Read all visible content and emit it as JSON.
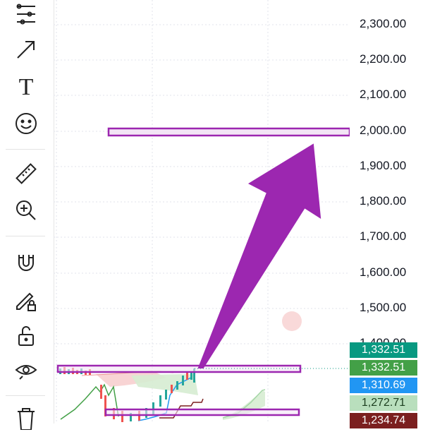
{
  "toolbar": {
    "tools": [
      {
        "name": "multipoint-icon"
      },
      {
        "name": "arrow-icon"
      },
      {
        "name": "text-icon",
        "glyph": "T"
      },
      {
        "name": "emoji-icon"
      },
      {
        "name": "ruler-icon"
      },
      {
        "name": "zoom-in-icon"
      },
      {
        "name": "magnet-icon"
      },
      {
        "name": "pencil-lock-icon"
      },
      {
        "name": "unlock-icon"
      },
      {
        "name": "eye-icon"
      },
      {
        "name": "trash-icon"
      }
    ]
  },
  "price_axis": {
    "ticks": [
      "2,300.00",
      "2,200.00",
      "2,100.00",
      "2,000.00",
      "1,900.00",
      "1,800.00",
      "1,700.00",
      "1,600.00",
      "1,500.00",
      "1,400.00"
    ]
  },
  "price_tags": [
    {
      "label": "1,332.51",
      "color": "#089981"
    },
    {
      "label": "1,332.51",
      "color": "#43a047"
    },
    {
      "label": "1,310.69",
      "color": "#2196f3"
    },
    {
      "label": "1,272.71",
      "color": "#b9dfbd",
      "text_color": "#1b3d1e"
    },
    {
      "label": "1,234.74",
      "color": "#7b1f1f"
    }
  ],
  "colors": {
    "drawing_accent": "#9c27b0",
    "grid": "#e0e3eb"
  }
}
